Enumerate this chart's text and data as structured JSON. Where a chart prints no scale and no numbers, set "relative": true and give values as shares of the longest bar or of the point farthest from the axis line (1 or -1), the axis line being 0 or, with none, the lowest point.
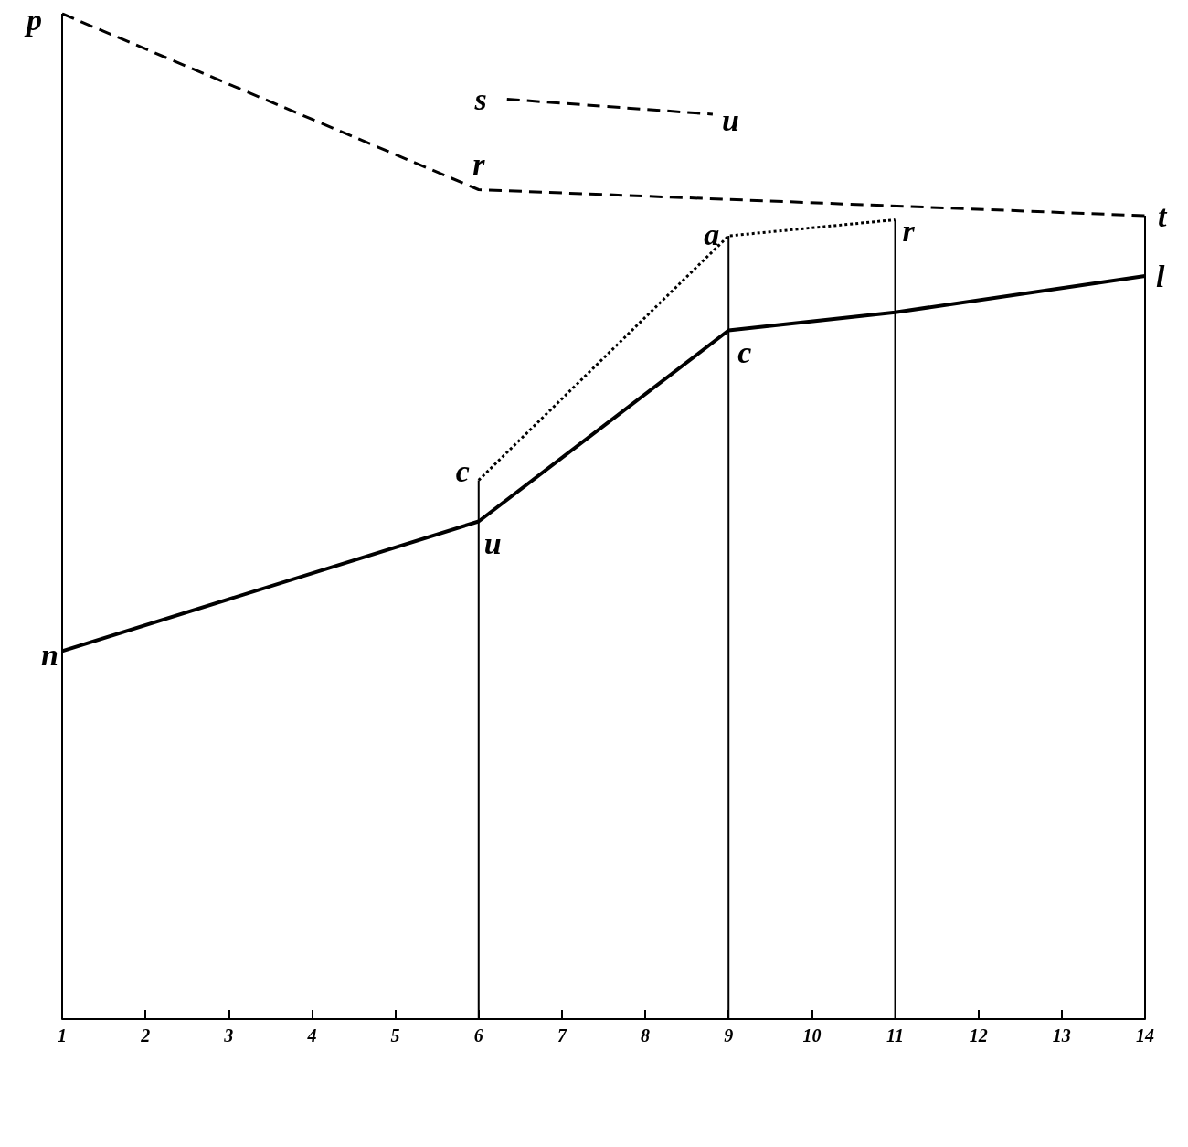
{
  "chart_data": {
    "type": "line",
    "relative": true,
    "xlim": [
      1,
      14
    ],
    "xticks": [
      1,
      2,
      3,
      4,
      5,
      6,
      7,
      8,
      9,
      10,
      11,
      12,
      13,
      14
    ],
    "tick_labels": "x",
    "grid": false,
    "marker": "none",
    "series": [
      {
        "type": "bar",
        "color": "#000000",
        "x": [
          1,
          6,
          9,
          11,
          14
        ],
        "values": [
          1,
          0.536,
          0.779,
          0.795,
          0.799
        ]
      },
      {
        "line_style": "solid",
        "color": "#000000",
        "x": [
          1,
          6,
          9,
          11,
          14
        ],
        "values": [
          0.366,
          0.495,
          0.685,
          0.703,
          0.739
        ]
      },
      {
        "line_style": "dashed",
        "color": "#000000",
        "x": [
          1,
          6,
          14
        ],
        "values": [
          1,
          0.825,
          0.799
        ]
      },
      {
        "line_style": "dotted",
        "color": "#000000",
        "x": [
          6,
          9,
          11
        ],
        "values": [
          0.536,
          0.779,
          0.795
        ]
      },
      {
        "line_style": "dashed",
        "color": "#000000",
        "x": [
          6.34,
          8.81
        ],
        "values": [
          0.915,
          0.9
        ]
      }
    ],
    "annotations": [
      {
        "text": "p",
        "x": 1,
        "y": 1
      },
      {
        "text": "r",
        "x": 6,
        "y": 0.825
      },
      {
        "text": "t",
        "x": 14,
        "y": 0.799
      },
      {
        "text": "s",
        "x": 6.34,
        "y": 0.915
      },
      {
        "text": "u",
        "x": 8.81,
        "y": 0.9
      },
      {
        "text": "a",
        "x": 9,
        "y": 0.779
      },
      {
        "text": "r",
        "x": 11,
        "y": 0.795
      },
      {
        "text": "l",
        "x": 14,
        "y": 0.739
      },
      {
        "text": "c",
        "x": 9,
        "y": 0.685
      },
      {
        "text": "c",
        "x": 6,
        "y": 0.536
      },
      {
        "text": "u",
        "x": 6,
        "y": 0.495
      },
      {
        "text": "n",
        "x": 1,
        "y": 0.366
      }
    ]
  }
}
